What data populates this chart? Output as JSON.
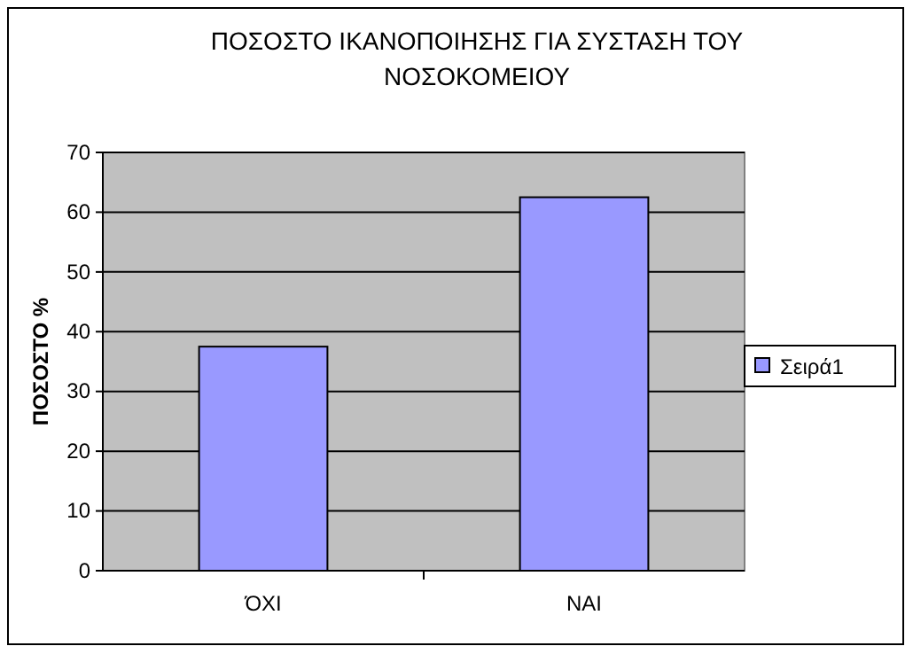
{
  "chart_data": {
    "type": "bar",
    "title": "ΠΟΣΟΣΤΟ ΙΚΑΝΟΠΟΙΗΣΗΣ ΓΙΑ ΣΥΣΤΑΣΗ ΤΟΥ ΝΟΣΟΚΟΜΕΙΟΥ",
    "ylabel": "ΠΟΣΟΣΤΟ %",
    "categories": [
      "ΌΧΙ",
      "ΝΑΙ"
    ],
    "series": [
      {
        "name": "Σειρά1",
        "color": "#9999ff",
        "values": [
          37.5,
          62.5
        ]
      }
    ],
    "ylim": [
      0,
      70
    ],
    "yticks": [
      0,
      10,
      20,
      30,
      40,
      50,
      60,
      70
    ],
    "grid": "y",
    "legend": "right"
  }
}
